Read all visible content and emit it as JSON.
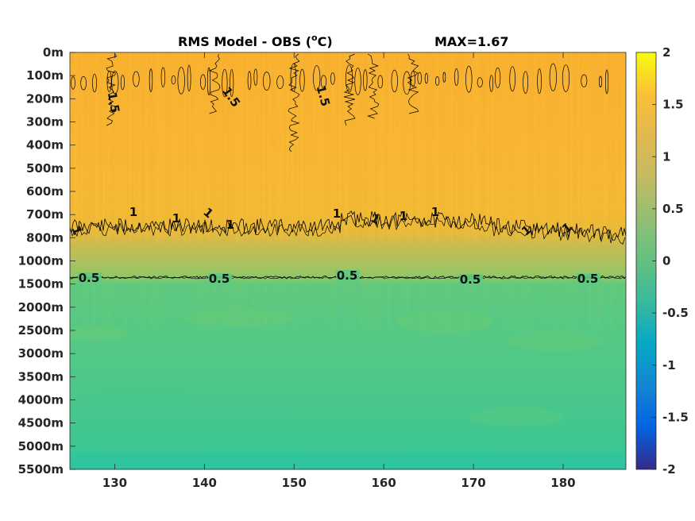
{
  "chart_data": {
    "type": "heatmap",
    "title": "RMS Model - OBS (",
    "title_unit": "o",
    "title_unit_tail": "C)",
    "max_label": "MAX=1.67",
    "x_ticks": [
      "130",
      "140",
      "150",
      "160",
      "170",
      "180"
    ],
    "x_tick_values": [
      130,
      140,
      150,
      160,
      170,
      180
    ],
    "xlim": [
      125,
      187
    ],
    "y_ticks": [
      "0m",
      "100m",
      "200m",
      "300m",
      "400m",
      "500m",
      "600m",
      "700m",
      "800m",
      "1000m",
      "1500m",
      "2000m",
      "2500m",
      "3000m",
      "3500m",
      "4000m",
      "4500m",
      "5000m",
      "5500m"
    ],
    "colorbar": {
      "ticks": [
        "2",
        "1.5",
        "1",
        "0.5",
        "0",
        "-0.5",
        "-1",
        "-1.5",
        "-2"
      ],
      "tick_values": [
        2,
        1.5,
        1,
        0.5,
        0,
        -0.5,
        -1,
        -1.5,
        -2
      ],
      "range": [
        -2,
        2
      ],
      "colormap": "parula"
    },
    "rows": [
      {
        "depth": "0m",
        "value": 1.4
      },
      {
        "depth": "100m",
        "value": 1.4
      },
      {
        "depth": "200m",
        "value": 1.4
      },
      {
        "depth": "300m",
        "value": 1.35
      },
      {
        "depth": "400m",
        "value": 1.3
      },
      {
        "depth": "500m",
        "value": 1.25
      },
      {
        "depth": "600m",
        "value": 1.2
      },
      {
        "depth": "700m",
        "value": 1.1
      },
      {
        "depth": "800m",
        "value": 0.9
      },
      {
        "depth": "1000m",
        "value": 0.7
      },
      {
        "depth": "1500m",
        "value": 0.45
      },
      {
        "depth": "2000m",
        "value": 0.42
      },
      {
        "depth": "2500m",
        "value": 0.4
      },
      {
        "depth": "3000m",
        "value": 0.37
      },
      {
        "depth": "3500m",
        "value": 0.35
      },
      {
        "depth": "4000m",
        "value": 0.34
      },
      {
        "depth": "4500m",
        "value": 0.33
      },
      {
        "depth": "5000m",
        "value": 0.32
      },
      {
        "depth": "5500m",
        "value": 0.2
      }
    ],
    "contours": [
      {
        "level": "1.5",
        "labels": [
          "1.5",
          "1.5",
          "1.5"
        ]
      },
      {
        "level": "1",
        "labels": [
          "1",
          "1",
          "1",
          "1",
          "1",
          "1",
          "1",
          "1",
          "1",
          "1",
          "1"
        ]
      },
      {
        "level": "0.5",
        "labels": [
          "0.5",
          "0.5",
          "0.5",
          "0.5",
          "0.5"
        ]
      }
    ],
    "colors": {
      "upper": "#f9b530",
      "upper_mid": "#fbba2c",
      "thermocline": "#d8b948",
      "deep": "#49c889",
      "deep_alt": "#6ccc70",
      "bottom": "#2cc6a2"
    }
  }
}
